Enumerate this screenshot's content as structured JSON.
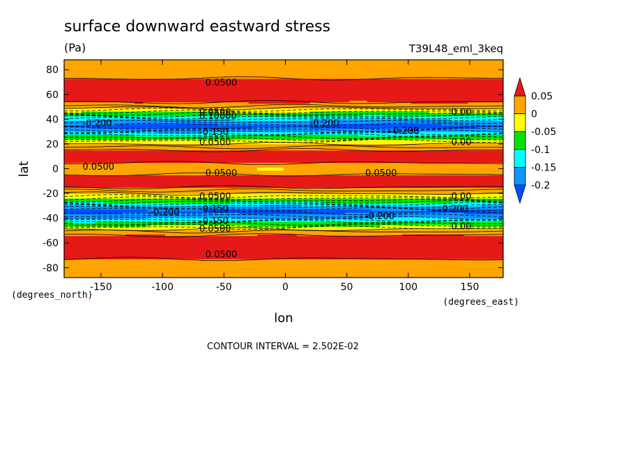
{
  "chart_data": {
    "type": "heatmap",
    "title": "surface downward eastward stress",
    "units": "(Pa)",
    "run_label": "T39L48_eml_3keq",
    "xlabel": "lon",
    "ylabel": "lat",
    "x_units": "(degrees_east)",
    "y_units": "(degrees_north)",
    "xlim": [
      -180,
      177.2
    ],
    "ylim": [
      -88,
      88
    ],
    "x_ticks": [
      -150,
      -100,
      -50,
      0,
      50,
      100,
      150
    ],
    "y_ticks": [
      -80,
      -60,
      -40,
      -20,
      0,
      20,
      40,
      60,
      80
    ],
    "x_tick_labels": [
      "-150",
      "-100",
      "-50",
      "0",
      "50",
      "100",
      "150"
    ],
    "y_tick_labels": [
      "-80",
      "-60",
      "-40",
      "-20",
      "0",
      "20",
      "40",
      "60",
      "80"
    ],
    "contour_interval_text": "CONTOUR INTERVAL = 2.502E-02",
    "colorbar": {
      "levels": [
        -0.2,
        -0.15,
        -0.1,
        -0.05,
        0,
        0.05
      ],
      "tick_labels": [
        "0.05",
        "0",
        "-0.05",
        "-0.1",
        "-0.15",
        "-0.2"
      ],
      "colors": [
        "#e61919",
        "#ffa500",
        "#ffff00",
        "#00e600",
        "#00ffff",
        "#0f96ff",
        "#0050ff"
      ],
      "extend": "both"
    },
    "zonal_profile": {
      "lat": [
        -90,
        -75,
        -72,
        -65,
        -55,
        -50,
        -48,
        -44,
        -40,
        -34,
        -30,
        -26,
        -22,
        -18,
        -14,
        -6,
        -2,
        2,
        6,
        14,
        18,
        22,
        26,
        30,
        34,
        40,
        44,
        48,
        50,
        55,
        65,
        72,
        75,
        90
      ],
      "value": [
        0.03,
        0.03,
        0.06,
        0.07,
        0.06,
        0.02,
        -0.02,
        -0.08,
        -0.15,
        -0.22,
        -0.15,
        -0.08,
        -0.02,
        0.02,
        0.06,
        0.06,
        0.03,
        0.03,
        0.06,
        0.06,
        0.02,
        -0.02,
        -0.08,
        -0.15,
        -0.22,
        -0.15,
        -0.08,
        -0.02,
        0.02,
        0.06,
        0.07,
        0.06,
        0.03,
        0.03
      ]
    },
    "contour_labels": [
      {
        "lon": -65,
        "lat": 70,
        "text": "0.0500"
      },
      {
        "lon": -70,
        "lat": 46,
        "text": "0.0500"
      },
      {
        "lon": -70,
        "lat": 43,
        "text": "0.10000"
      },
      {
        "lon": -165,
        "lat": 37,
        "text": "-0.200"
      },
      {
        "lon": 20,
        "lat": 37,
        "text": "-0.200"
      },
      {
        "lon": 85,
        "lat": 31,
        "text": "-0.200"
      },
      {
        "lon": -70,
        "lat": 30,
        "text": "-0.150"
      },
      {
        "lon": -70,
        "lat": 22,
        "text": "0.0500"
      },
      {
        "lon": 135,
        "lat": 46,
        "text": "0.00"
      },
      {
        "lon": 135,
        "lat": 22,
        "text": "0.00"
      },
      {
        "lon": -165,
        "lat": 2,
        "text": "0.0500"
      },
      {
        "lon": -65,
        "lat": -3,
        "text": "0.0500"
      },
      {
        "lon": 65,
        "lat": -3,
        "text": "0.0500"
      },
      {
        "lon": -70,
        "lat": -22,
        "text": "0.0500"
      },
      {
        "lon": 135,
        "lat": -22,
        "text": "0.00"
      },
      {
        "lon": -110,
        "lat": -35,
        "text": "-0.200"
      },
      {
        "lon": 125,
        "lat": -32,
        "text": "-0.200"
      },
      {
        "lon": 65,
        "lat": -38,
        "text": "-0.200"
      },
      {
        "lon": -70,
        "lat": -32,
        "text": "-0.150"
      },
      {
        "lon": -70,
        "lat": -42,
        "text": "-0.150"
      },
      {
        "lon": -70,
        "lat": -48,
        "text": "0.0500"
      },
      {
        "lon": 135,
        "lat": -46,
        "text": "0.00"
      },
      {
        "lon": -65,
        "lat": -69,
        "text": "0.0500"
      }
    ]
  }
}
